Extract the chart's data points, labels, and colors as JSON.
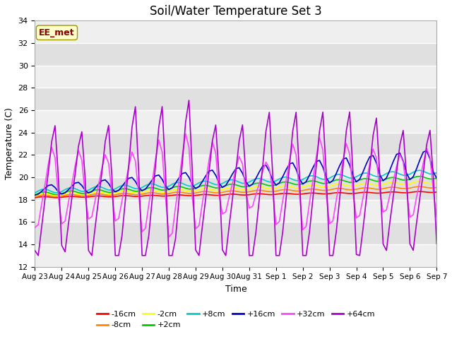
{
  "title": "Soil/Water Temperature Set 3",
  "xlabel": "Time",
  "ylabel": "Temperature (C)",
  "ylim": [
    12,
    34
  ],
  "annotation": "EE_met",
  "x_tick_labels": [
    "Aug 23",
    "Aug 24",
    "Aug 25",
    "Aug 26",
    "Aug 27",
    "Aug 28",
    "Aug 29",
    "Aug 30",
    "Aug 31",
    "Sep 1",
    "Sep 2",
    "Sep 3",
    "Sep 4",
    "Sep 5",
    "Sep 6",
    "Sep 7"
  ],
  "series": {
    "-16cm": {
      "color": "#ff0000",
      "linewidth": 1.2
    },
    "-8cm": {
      "color": "#ff8800",
      "linewidth": 1.2
    },
    "-2cm": {
      "color": "#ffff00",
      "linewidth": 1.2
    },
    "+2cm": {
      "color": "#00cc00",
      "linewidth": 1.2
    },
    "+8cm": {
      "color": "#00cccc",
      "linewidth": 1.2
    },
    "+16cm": {
      "color": "#0000cc",
      "linewidth": 1.2
    },
    "+32cm": {
      "color": "#ff44ff",
      "linewidth": 1.2
    },
    "+64cm": {
      "color": "#aa00cc",
      "linewidth": 1.2
    }
  },
  "background_color": "#e8e8e8",
  "plot_bg_color": "#e0e0e0",
  "title_fontsize": 12,
  "axis_fontsize": 9,
  "legend_fontsize": 8
}
